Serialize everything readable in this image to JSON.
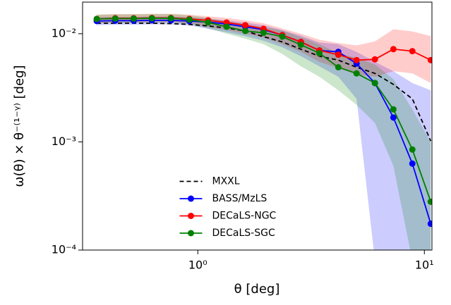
{
  "chart_data": {
    "type": "line",
    "xlabel": "θ [deg]",
    "ylabel": "ω(θ) × θ⁻⁽¹⁻ᵞ⁾ [deg]",
    "xscale": "log",
    "yscale": "log",
    "xlim": [
      0.31,
      10.8
    ],
    "ylim": [
      0.0001,
      0.0196
    ],
    "xticks": [
      {
        "value": 1,
        "label": "10⁰"
      },
      {
        "value": 10,
        "label": "10¹"
      }
    ],
    "yticks": [
      {
        "value": 0.0001,
        "label": "10⁻⁴"
      },
      {
        "value": 0.001,
        "label": "10⁻³"
      },
      {
        "value": 0.01,
        "label": "10⁻²"
      }
    ],
    "legend": "lower center",
    "x": [
      0.358,
      0.432,
      0.521,
      0.627,
      0.761,
      0.918,
      1.11,
      1.34,
      1.62,
      1.95,
      2.36,
      2.85,
      3.44,
      4.17,
      5.02,
      6.05,
      7.3,
      8.85,
      10.67
    ],
    "series": [
      {
        "name": "MXXL",
        "color": "#000000",
        "linestyle": "dashed",
        "marker": false,
        "values": [
          0.0125,
          0.0125,
          0.0125,
          0.0125,
          0.0124,
          0.0122,
          0.0118,
          0.0113,
          0.0106,
          0.0094,
          0.0084,
          0.0072,
          0.0062,
          0.0057,
          0.0049,
          0.0043,
          0.0034,
          0.0025,
          0.00102
        ]
      },
      {
        "name": "BASS/MzLS",
        "color": "#0000ff",
        "linestyle": "solid",
        "marker": true,
        "values": [
          0.0131,
          0.0132,
          0.0132,
          0.0133,
          0.0133,
          0.0131,
          0.0128,
          0.0123,
          0.0116,
          0.0109,
          0.0097,
          0.0084,
          0.007,
          0.0068,
          0.0053,
          0.0035,
          0.00168,
          0.00063,
          0.000175
        ],
        "upper": [
          0.0142,
          0.0143,
          0.0143,
          0.0144,
          0.0144,
          0.0142,
          0.0138,
          0.0133,
          0.0127,
          0.012,
          0.0108,
          0.0096,
          0.0083,
          0.008,
          0.0068,
          0.0055,
          0.0045,
          0.0035,
          0.003
        ],
        "lower": [
          0.012,
          0.0121,
          0.0121,
          0.0122,
          0.0122,
          0.0119,
          0.0111,
          0.0103,
          0.0095,
          0.0086,
          0.0075,
          0.0062,
          0.005,
          0.004,
          0.0025,
          8e-05,
          8e-05,
          8e-05,
          8e-05
        ]
      },
      {
        "name": "DECaLS-NGC",
        "color": "#ff0000",
        "linestyle": "solid",
        "marker": true,
        "values": [
          0.0137,
          0.0139,
          0.0139,
          0.014,
          0.014,
          0.0137,
          0.0133,
          0.0127,
          0.012,
          0.0111,
          0.0097,
          0.0084,
          0.007,
          0.0064,
          0.0057,
          0.0058,
          0.0072,
          0.0069,
          0.0057
        ],
        "upper": [
          0.015,
          0.0152,
          0.0152,
          0.0153,
          0.0153,
          0.015,
          0.0145,
          0.014,
          0.0133,
          0.0125,
          0.0112,
          0.01,
          0.0088,
          0.0082,
          0.0078,
          0.0085,
          0.011,
          0.0105,
          0.0095
        ],
        "lower": [
          0.0125,
          0.0127,
          0.0127,
          0.0128,
          0.0128,
          0.0124,
          0.0115,
          0.0108,
          0.01,
          0.0092,
          0.008,
          0.0068,
          0.0055,
          0.0048,
          0.0042,
          0.004,
          0.0045,
          0.0043,
          0.0035
        ]
      },
      {
        "name": "DECaLS-SGC",
        "color": "#008000",
        "linestyle": "solid",
        "marker": true,
        "values": [
          0.0137,
          0.0138,
          0.0138,
          0.0139,
          0.0139,
          0.0135,
          0.0127,
          0.0116,
          0.0106,
          0.0102,
          0.0094,
          0.0079,
          0.0066,
          0.0049,
          0.0043,
          0.0035,
          0.002,
          0.00085,
          0.00028
        ],
        "upper": [
          0.015,
          0.0151,
          0.0151,
          0.0152,
          0.0152,
          0.0148,
          0.014,
          0.013,
          0.0122,
          0.0115,
          0.0107,
          0.0093,
          0.008,
          0.0066,
          0.006,
          0.0052,
          0.0038,
          0.002,
          0.001
        ],
        "lower": [
          0.0125,
          0.0126,
          0.0126,
          0.0127,
          0.0127,
          0.0122,
          0.0112,
          0.01,
          0.009,
          0.008,
          0.0065,
          0.005,
          0.004,
          0.003,
          0.0022,
          0.0015,
          0.0006,
          8e-05,
          8e-05
        ]
      }
    ]
  }
}
